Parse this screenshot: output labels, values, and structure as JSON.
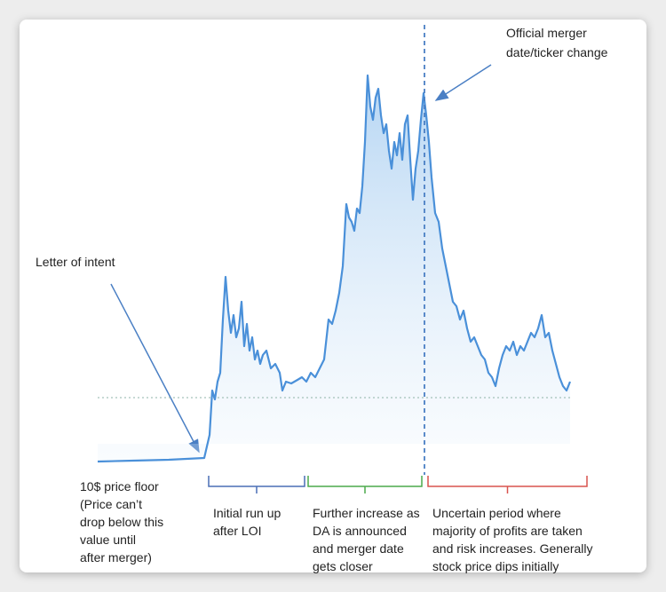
{
  "chart_data": {
    "type": "line",
    "color": "#4a90d9",
    "x": [
      0,
      40,
      80,
      120,
      126,
      129,
      132,
      135,
      138,
      141,
      144,
      147,
      150,
      153,
      156,
      159,
      162,
      165,
      168,
      171,
      174,
      177,
      180,
      183,
      186,
      190,
      195,
      200,
      205,
      208,
      212,
      218,
      225,
      230,
      235,
      240,
      245,
      250,
      255,
      260,
      264,
      268,
      272,
      276,
      280,
      283,
      286,
      289,
      292,
      295,
      298,
      301,
      304,
      307,
      310,
      313,
      316,
      319,
      322,
      325,
      328,
      331,
      334,
      337,
      340,
      343,
      346,
      349,
      352,
      355,
      358,
      361,
      364,
      367,
      370,
      373,
      376,
      380,
      384,
      388,
      392,
      396,
      400,
      404,
      408,
      412,
      416,
      420,
      424,
      428,
      432,
      436,
      440,
      444,
      448,
      452,
      456,
      460,
      464,
      468,
      472,
      476,
      480,
      484,
      488,
      492,
      496,
      500,
      504,
      508,
      512,
      516,
      520,
      524,
      528,
      532
    ],
    "values": [
      9.9,
      10,
      10.1,
      10.3,
      12.9,
      17.9,
      16.9,
      18.9,
      19.9,
      25.9,
      30.7,
      26.9,
      24.4,
      26.4,
      23.9,
      24.9,
      27.9,
      22.9,
      25.4,
      22.4,
      23.9,
      21.4,
      22.4,
      20.9,
      21.9,
      22.4,
      20.4,
      20.9,
      19.9,
      17.9,
      18.9,
      18.7,
      19.1,
      19.4,
      18.9,
      19.9,
      19.4,
      20.4,
      21.4,
      25.9,
      25.4,
      26.9,
      28.9,
      31.9,
      38.9,
      37.4,
      36.9,
      35.9,
      38.4,
      37.9,
      40.9,
      45.9,
      53.4,
      49.9,
      48.4,
      50.9,
      51.9,
      48.9,
      46.9,
      47.9,
      44.9,
      42.9,
      45.9,
      44.4,
      46.9,
      43.9,
      47.9,
      48.9,
      43.9,
      39.4,
      42.9,
      44.9,
      48.4,
      51.4,
      48.9,
      45.9,
      41.9,
      37.9,
      36.9,
      33.9,
      31.9,
      29.9,
      27.9,
      27.4,
      25.9,
      26.9,
      24.9,
      23.4,
      23.9,
      22.9,
      21.9,
      21.4,
      19.9,
      19.4,
      18.4,
      20.4,
      21.9,
      22.9,
      22.4,
      23.4,
      21.9,
      22.9,
      22.4,
      23.4,
      24.4,
      23.9,
      24.9,
      26.4,
      23.9,
      24.4,
      22.4,
      20.9,
      19.4,
      18.4,
      17.9,
      18.9
    ],
    "xlim": [
      0,
      555
    ],
    "ylim": [
      8,
      56
    ],
    "hline": 17.1,
    "vline": 368,
    "annotations": [
      {
        "lines": [
          "Official merger",
          "date/ticker change"
        ]
      },
      {
        "lines": [
          "Letter of intent"
        ]
      },
      {
        "lines": [
          "10$ price floor",
          "(Price can’t",
          "drop below this",
          "value until",
          "after merger)"
        ]
      }
    ],
    "phases": [
      {
        "x": [
          123,
          235
        ],
        "color": "#4a6fb5",
        "lines": [
          "Initial run up",
          "after LOI"
        ]
      },
      {
        "x": [
          235,
          367
        ],
        "color": "#4caa4c",
        "lines": [
          "Further increase as",
          "DA is announced",
          "and merger date",
          "gets closer"
        ]
      },
      {
        "x": [
          370,
          553
        ],
        "color": "#d9534f",
        "lines": [
          "Uncertain period where",
          "majority of profits are taken",
          "and risk increases. Generally",
          "stock price dips initially"
        ]
      }
    ]
  }
}
